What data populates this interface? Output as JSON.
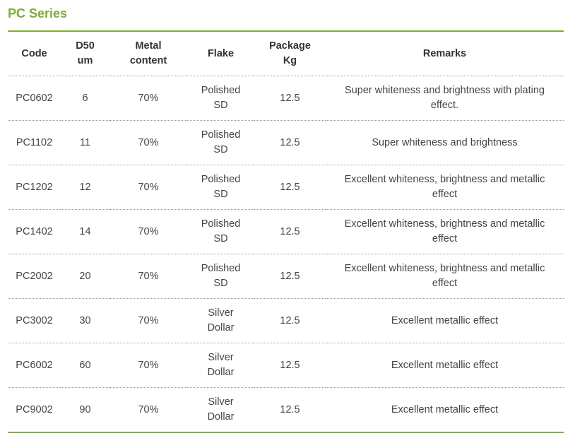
{
  "title": "PC Series",
  "columns": [
    {
      "l1": "Code",
      "l2": ""
    },
    {
      "l1": "D50",
      "l2": "um"
    },
    {
      "l1": "Metal",
      "l2": "content"
    },
    {
      "l1": "Flake",
      "l2": ""
    },
    {
      "l1": "Package",
      "l2": "Kg"
    },
    {
      "l1": "Remarks",
      "l2": ""
    }
  ],
  "rows": [
    {
      "code": "PC0602",
      "d50": "6",
      "metal": "70%",
      "flake1": "Polished",
      "flake2": "SD",
      "package": "12.5",
      "rem1": "Super whiteness and brightness with plating",
      "rem2": "effect."
    },
    {
      "code": "PC1102",
      "d50": "11",
      "metal": "70%",
      "flake1": "Polished",
      "flake2": "SD",
      "package": "12.5",
      "rem1": "Super whiteness and brightness",
      "rem2": ""
    },
    {
      "code": "PC1202",
      "d50": "12",
      "metal": "70%",
      "flake1": "Polished",
      "flake2": "SD",
      "package": "12.5",
      "rem1": "Excellent whiteness, brightness and metallic",
      "rem2": "effect"
    },
    {
      "code": "PC1402",
      "d50": "14",
      "metal": "70%",
      "flake1": "Polished",
      "flake2": "SD",
      "package": "12.5",
      "rem1": "Excellent whiteness, brightness and metallic",
      "rem2": "effect"
    },
    {
      "code": "PC2002",
      "d50": "20",
      "metal": "70%",
      "flake1": "Polished",
      "flake2": "SD",
      "package": "12.5",
      "rem1": "Excellent whiteness, brightness and metallic",
      "rem2": "effect"
    },
    {
      "code": "PC3002",
      "d50": "30",
      "metal": "70%",
      "flake1": "Silver",
      "flake2": "Dollar",
      "package": "12.5",
      "rem1": "Excellent metallic effect",
      "rem2": ""
    },
    {
      "code": "PC6002",
      "d50": "60",
      "metal": "70%",
      "flake1": "Silver",
      "flake2": "Dollar",
      "package": "12.5",
      "rem1": "Excellent metallic effect",
      "rem2": ""
    },
    {
      "code": "PC9002",
      "d50": "90",
      "metal": "70%",
      "flake1": "Silver",
      "flake2": "Dollar",
      "package": "12.5",
      "rem1": "Excellent metallic effect",
      "rem2": ""
    }
  ]
}
